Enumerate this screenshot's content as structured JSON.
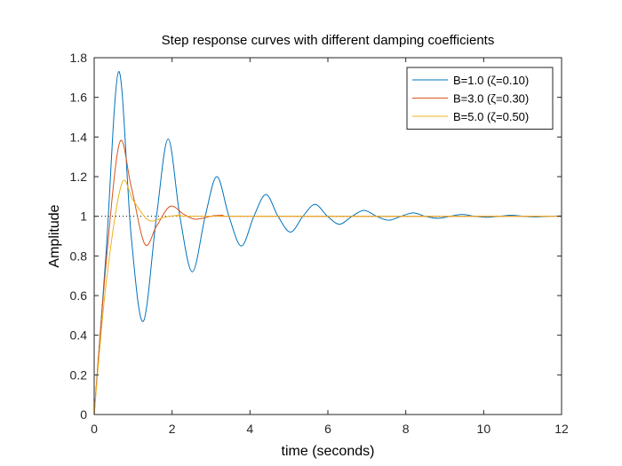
{
  "chart_data": {
    "type": "line",
    "title": "Step response curves with different damping coefficients",
    "xlabel": "time (seconds)",
    "ylabel": "Amplitude",
    "xlim": [
      0,
      12
    ],
    "ylim": [
      0,
      1.8
    ],
    "x_ticks": [
      "0",
      "2",
      "4",
      "6",
      "8",
      "10",
      "12"
    ],
    "y_ticks": [
      "0",
      "0.2",
      "0.4",
      "0.6",
      "0.8",
      "1",
      "1.2",
      "1.4",
      "1.6",
      "1.8"
    ],
    "x_tick_values": [
      0,
      2,
      4,
      6,
      8,
      10,
      12
    ],
    "y_tick_values": [
      0,
      0.2,
      0.4,
      0.6,
      0.8,
      1,
      1.2,
      1.4,
      1.6,
      1.8
    ],
    "grid": false,
    "legend_position": "top-right",
    "reference_line": {
      "y": 1,
      "style": "dotted"
    },
    "series": [
      {
        "name": "B=1.0 (ζ=0.10)",
        "color": "#0072BD",
        "points": [
          [
            0,
            0
          ],
          [
            0.3,
            0.8
          ],
          [
            0.63,
            1.73
          ],
          [
            0.95,
            0.9
          ],
          [
            1.26,
            0.47
          ],
          [
            1.6,
            1.0
          ],
          [
            1.9,
            1.39
          ],
          [
            2.2,
            1.0
          ],
          [
            2.52,
            0.72
          ],
          [
            2.85,
            1.0
          ],
          [
            3.15,
            1.2
          ],
          [
            3.46,
            1.0
          ],
          [
            3.78,
            0.85
          ],
          [
            4.1,
            1.0
          ],
          [
            4.41,
            1.11
          ],
          [
            4.72,
            1.0
          ],
          [
            5.04,
            0.92
          ],
          [
            5.36,
            1.0
          ],
          [
            5.67,
            1.06
          ],
          [
            5.99,
            1.0
          ],
          [
            6.3,
            0.96
          ],
          [
            6.62,
            1.0
          ],
          [
            6.93,
            1.03
          ],
          [
            7.25,
            1.0
          ],
          [
            7.56,
            0.98
          ],
          [
            7.88,
            1.0
          ],
          [
            8.19,
            1.017
          ],
          [
            8.5,
            1.0
          ],
          [
            8.82,
            0.99
          ],
          [
            9.14,
            1.0
          ],
          [
            9.45,
            1.009
          ],
          [
            9.77,
            1.0
          ],
          [
            10.08,
            0.995
          ],
          [
            10.4,
            1.0
          ],
          [
            10.71,
            1.005
          ],
          [
            11.02,
            1.0
          ],
          [
            11.34,
            0.997
          ],
          [
            11.66,
            1.0
          ],
          [
            12,
            1.002
          ]
        ]
      },
      {
        "name": "B=3.0 (ζ=0.30)",
        "color": "#D95319",
        "points": [
          [
            0,
            0
          ],
          [
            0.3,
            0.75
          ],
          [
            0.65,
            1.37
          ],
          [
            0.95,
            1.15
          ],
          [
            1.3,
            0.86
          ],
          [
            1.6,
            0.95
          ],
          [
            1.95,
            1.05
          ],
          [
            2.3,
            1.01
          ],
          [
            2.6,
            0.985
          ],
          [
            3.0,
            1.0
          ],
          [
            3.3,
            1.005
          ],
          [
            3.8,
            1.0
          ],
          [
            12,
            1.0
          ]
        ]
      },
      {
        "name": "B=5.0 (ζ=0.50)",
        "color": "#EDB120",
        "points": [
          [
            0,
            0
          ],
          [
            0.3,
            0.65
          ],
          [
            0.7,
            1.16
          ],
          [
            1.0,
            1.08
          ],
          [
            1.4,
            0.98
          ],
          [
            1.8,
            0.995
          ],
          [
            2.2,
            1.005
          ],
          [
            3.0,
            1.0
          ],
          [
            12,
            1.0
          ]
        ]
      }
    ]
  }
}
